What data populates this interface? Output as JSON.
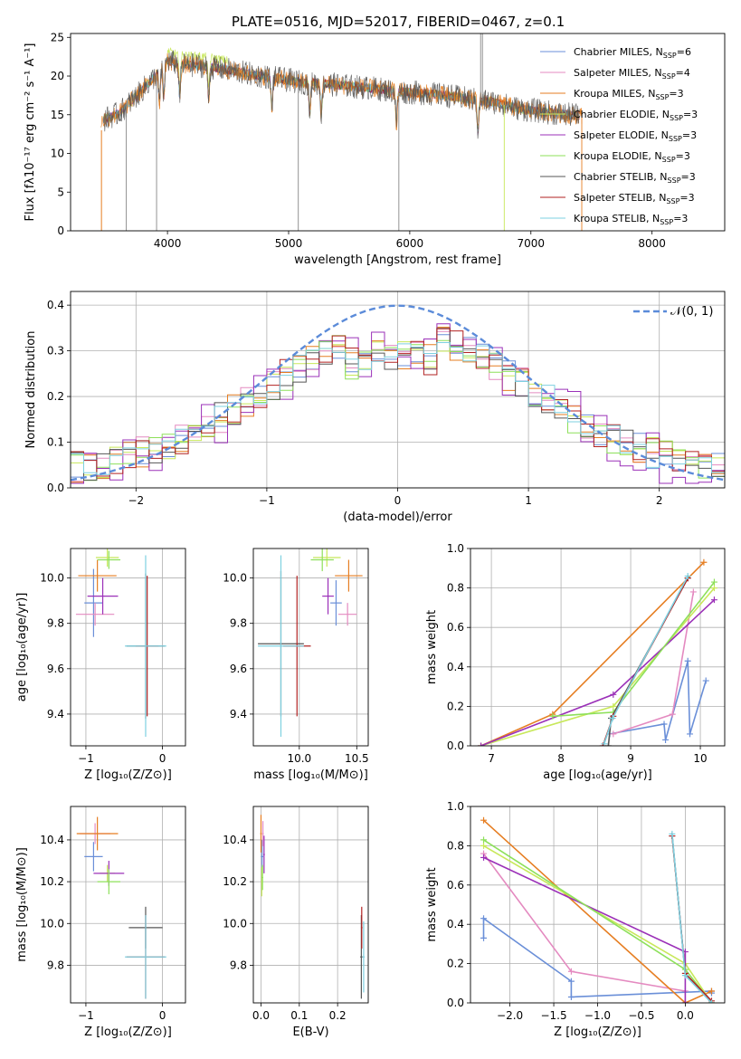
{
  "figure": {
    "title": "PLATE=0516, MJD=52017, FIBERID=0467, z=0.1"
  },
  "colors": {
    "series": [
      "#6a8fd8",
      "#e48ac0",
      "#e67e22",
      "#c8e85a",
      "#9b30b8",
      "#8de05a",
      "#555555",
      "#b22222",
      "#7ed0e0"
    ],
    "grid": "#b0b0b0",
    "normal": "#5b8bd9"
  },
  "legend": [
    {
      "label": "Chabrier MILES, N",
      "sub": "SSP",
      "suffix": "=6"
    },
    {
      "label": "Salpeter MILES, N",
      "sub": "SSP",
      "suffix": "=4"
    },
    {
      "label": "Kroupa MILES, N",
      "sub": "SSP",
      "suffix": "=3"
    },
    {
      "label": "Chabrier ELODIE, N",
      "sub": "SSP",
      "suffix": "=3"
    },
    {
      "label": "Salpeter ELODIE, N",
      "sub": "SSP",
      "suffix": "=3"
    },
    {
      "label": "Kroupa ELODIE, N",
      "sub": "SSP",
      "suffix": "=3"
    },
    {
      "label": "Chabrier STELIB, N",
      "sub": "SSP",
      "suffix": "=3"
    },
    {
      "label": "Salpeter STELIB, N",
      "sub": "SSP",
      "suffix": "=3"
    },
    {
      "label": "Kroupa STELIB, N",
      "sub": "SSP",
      "suffix": "=3"
    }
  ],
  "chart_data": [
    {
      "id": "spectrum",
      "type": "line",
      "xlabel": "wavelength [Angstrom, rest frame]",
      "ylabel": "Flux [fλ10⁻¹⁷ erg cm⁻² s⁻¹ A⁻¹]",
      "xlim": [
        3200,
        8600
      ],
      "ylim": [
        0,
        25.5
      ],
      "xticks": [
        4000,
        5000,
        6000,
        7000,
        8000
      ],
      "yticks": [
        0,
        5,
        10,
        15,
        20,
        25
      ],
      "continuum": {
        "x": [
          3450,
          3600,
          3750,
          3900,
          4000,
          4100,
          4300,
          4500,
          4700,
          4900,
          5100,
          5300,
          5500,
          5700,
          5900,
          6100,
          6300,
          6500,
          6700,
          6900,
          7100,
          7300,
          7420
        ],
        "y": [
          14.2,
          15.2,
          17.5,
          20.0,
          22.0,
          21.5,
          21.3,
          20.8,
          20.2,
          19.7,
          19.2,
          19.0,
          18.7,
          18.4,
          18.0,
          17.8,
          17.5,
          17.0,
          16.6,
          15.8,
          15.4,
          15.0,
          14.9
        ]
      },
      "absorption_lines": [
        3934,
        3969,
        4101,
        4340,
        4861,
        5175,
        5270,
        5890,
        6563
      ],
      "spikes": [
        {
          "x": 3660,
          "y": 0
        },
        {
          "x": 3910,
          "y": 0
        },
        {
          "x": 5080,
          "y": 0
        },
        {
          "x": 5910,
          "y": 0
        },
        {
          "x": 6780,
          "y": 0
        },
        {
          "x": 7420,
          "y": 0
        },
        {
          "x": 6585,
          "y": 25.5
        },
        {
          "x": 6600,
          "y": 25.5
        }
      ]
    },
    {
      "id": "residuals",
      "type": "bar",
      "xlabel": "(data-model)/error",
      "ylabel": "Normed distribution",
      "xlim": [
        -2.5,
        2.5
      ],
      "ylim": [
        0,
        0.43
      ],
      "xticks": [
        -2,
        -1,
        0,
        1,
        2
      ],
      "yticks": [
        0.0,
        0.1,
        0.2,
        0.3,
        0.4
      ],
      "bin_width": 0.1,
      "legend_label": "𝒩(0, 1)"
    },
    {
      "id": "age_vs_Z",
      "type": "scatter",
      "xlabel": "Z [log₁₀(Z/Z⊙)]",
      "ylabel": "age  [log₁₀(age/yr)]",
      "xlim": [
        -1.2,
        0.3
      ],
      "ylim": [
        9.26,
        10.13
      ],
      "xticks": [
        -1,
        0
      ],
      "yticks": [
        9.4,
        9.6,
        9.8,
        10.0
      ],
      "points": [
        {
          "x": -0.9,
          "y": 9.89,
          "xerr": 0.12,
          "yerr": 0.15
        },
        {
          "x": -0.88,
          "y": 9.84,
          "xerr": 0.25,
          "yerr": 0.05
        },
        {
          "x": -0.85,
          "y": 10.01,
          "xerr": 0.25,
          "yerr": 0.07
        },
        {
          "x": -0.72,
          "y": 10.09,
          "xerr": 0.15,
          "yerr": 0.04
        },
        {
          "x": -0.78,
          "y": 9.92,
          "xerr": 0.2,
          "yerr": 0.08
        },
        {
          "x": -0.7,
          "y": 10.08,
          "xerr": 0.15,
          "yerr": 0.04
        },
        {
          "x": -0.22,
          "y": 9.7,
          "xerr": 0.25,
          "yerr": 0.32
        },
        {
          "x": -0.2,
          "y": 9.7,
          "xerr": 0.15,
          "yerr": 0.31
        },
        {
          "x": -0.22,
          "y": 9.7,
          "xerr": 0.27,
          "yerr": 0.4
        }
      ]
    },
    {
      "id": "age_vs_mass",
      "type": "scatter",
      "xlabel": "mass [log₁₀(M/M⊙)]",
      "ylabel": "",
      "xlim": [
        9.6,
        10.6
      ],
      "ylim": [
        9.26,
        10.13
      ],
      "xticks": [
        10.0,
        10.5
      ],
      "yticks": [
        9.4,
        9.6,
        9.8,
        10.0
      ],
      "points": [
        {
          "x": 10.32,
          "y": 9.89,
          "xerr": 0.05,
          "yerr": 0.1
        },
        {
          "x": 10.42,
          "y": 9.84,
          "xerr": 0.08,
          "yerr": 0.05
        },
        {
          "x": 10.43,
          "y": 10.01,
          "xerr": 0.12,
          "yerr": 0.07
        },
        {
          "x": 10.24,
          "y": 10.09,
          "xerr": 0.12,
          "yerr": 0.04
        },
        {
          "x": 10.25,
          "y": 9.92,
          "xerr": 0.05,
          "yerr": 0.08
        },
        {
          "x": 10.2,
          "y": 10.08,
          "xerr": 0.1,
          "yerr": 0.05
        },
        {
          "x": 9.84,
          "y": 9.71,
          "xerr": 0.2,
          "yerr": 0.32
        },
        {
          "x": 9.98,
          "y": 9.7,
          "xerr": 0.12,
          "yerr": 0.31
        },
        {
          "x": 9.84,
          "y": 9.7,
          "xerr": 0.2,
          "yerr": 0.4
        }
      ]
    },
    {
      "id": "mass_weight_vs_age",
      "type": "line",
      "xlabel": "age  [log₁₀(age/yr)]",
      "ylabel": "mass weight",
      "xlim": [
        6.7,
        10.35
      ],
      "ylim": [
        0.0,
        1.0
      ],
      "xticks": [
        7,
        8,
        9,
        10
      ],
      "yticks": [
        0.0,
        0.2,
        0.4,
        0.6,
        0.8,
        1.0
      ],
      "series": [
        {
          "x": [
            8.7,
            9.48,
            9.5,
            9.82,
            9.85,
            10.08
          ],
          "y": [
            0.06,
            0.11,
            0.03,
            0.43,
            0.06,
            0.33
          ]
        },
        {
          "x": [
            8.75,
            9.6,
            9.9
          ],
          "y": [
            0.06,
            0.16,
            0.78
          ]
        },
        {
          "x": [
            6.85,
            7.88,
            10.05
          ],
          "y": [
            0.0,
            0.16,
            0.93
          ]
        },
        {
          "x": [
            6.85,
            8.75,
            10.2
          ],
          "y": [
            0.0,
            0.2,
            0.8
          ]
        },
        {
          "x": [
            6.85,
            8.75,
            10.2
          ],
          "y": [
            0.0,
            0.26,
            0.74
          ]
        },
        {
          "x": [
            7.88,
            8.75,
            10.2
          ],
          "y": [
            0.15,
            0.17,
            0.83
          ]
        },
        {
          "x": [
            8.68,
            8.72,
            9.82
          ],
          "y": [
            0.0,
            0.14,
            0.85
          ]
        },
        {
          "x": [
            8.6,
            8.75,
            9.82
          ],
          "y": [
            0.0,
            0.15,
            0.85
          ]
        },
        {
          "x": [
            8.62,
            8.74,
            9.82
          ],
          "y": [
            0.01,
            0.14,
            0.86
          ]
        }
      ]
    },
    {
      "id": "mass_vs_Z",
      "type": "scatter",
      "xlabel": "Z [log₁₀(Z/Z⊙)]",
      "ylabel": "mass [log₁₀(M/M⊙)]",
      "xlim": [
        -1.2,
        0.3
      ],
      "ylim": [
        9.62,
        10.56
      ],
      "xticks": [
        -1,
        0
      ],
      "yticks": [
        9.8,
        10.0,
        10.2,
        10.4
      ],
      "points": [
        {
          "x": -0.9,
          "y": 10.32,
          "xerr": 0.12,
          "yerr": 0.07
        },
        {
          "x": -0.88,
          "y": 10.43,
          "xerr": 0.2,
          "yerr": 0.05
        },
        {
          "x": -0.85,
          "y": 10.43,
          "xerr": 0.27,
          "yerr": 0.08
        },
        {
          "x": -0.72,
          "y": 10.24,
          "xerr": 0.1,
          "yerr": 0.04
        },
        {
          "x": -0.7,
          "y": 10.24,
          "xerr": 0.2,
          "yerr": 0.06
        },
        {
          "x": -0.7,
          "y": 10.2,
          "xerr": 0.15,
          "yerr": 0.06
        },
        {
          "x": -0.22,
          "y": 9.98,
          "xerr": 0.22,
          "yerr": 0.1
        },
        {
          "x": -0.22,
          "y": 9.84,
          "xerr": 0.25,
          "yerr": 0.2
        },
        {
          "x": -0.22,
          "y": 9.84,
          "xerr": 0.27,
          "yerr": 0.2
        }
      ]
    },
    {
      "id": "mass_vs_ebv",
      "type": "scatter",
      "xlabel": "E(B-V)",
      "ylabel": "",
      "xlim": [
        -0.02,
        0.28
      ],
      "ylim": [
        9.62,
        10.56
      ],
      "xticks": [
        0.0,
        0.1,
        0.2
      ],
      "yticks": [
        9.8,
        10.0,
        10.2,
        10.4
      ],
      "points": [
        {
          "x": 0.003,
          "y": 10.32,
          "xerr": 0.003,
          "yerr": 0.08
        },
        {
          "x": 0.005,
          "y": 10.43,
          "xerr": 0.002,
          "yerr": 0.06
        },
        {
          "x": 0.0,
          "y": 10.43,
          "xerr": 0.002,
          "yerr": 0.09
        },
        {
          "x": 0.002,
          "y": 10.2,
          "xerr": 0.002,
          "yerr": 0.07
        },
        {
          "x": 0.008,
          "y": 10.33,
          "xerr": 0.002,
          "yerr": 0.09
        },
        {
          "x": 0.004,
          "y": 10.22,
          "xerr": 0.002,
          "yerr": 0.06
        },
        {
          "x": 0.262,
          "y": 9.84,
          "xerr": 0.003,
          "yerr": 0.2
        },
        {
          "x": 0.263,
          "y": 9.98,
          "xerr": 0.002,
          "yerr": 0.1
        },
        {
          "x": 0.268,
          "y": 9.84,
          "xerr": 0.003,
          "yerr": 0.17
        }
      ]
    },
    {
      "id": "mass_weight_vs_Z",
      "type": "line",
      "xlabel": "Z [log₁₀(Z/Z⊙)]",
      "ylabel": "mass weight",
      "xlim": [
        -2.45,
        0.45
      ],
      "ylim": [
        0.0,
        1.0
      ],
      "xticks": [
        -2.0,
        -1.5,
        -1.0,
        -0.5,
        0.0
      ],
      "yticks": [
        0.0,
        0.2,
        0.4,
        0.6,
        0.8,
        1.0
      ],
      "series": [
        {
          "x": [
            -2.3,
            -2.3,
            -1.3,
            -1.3,
            0.3,
            0.3
          ],
          "y": [
            0.33,
            0.43,
            0.11,
            0.03,
            0.06,
            0.05
          ]
        },
        {
          "x": [
            -2.3,
            -1.3,
            0.0
          ],
          "y": [
            0.76,
            0.16,
            0.06
          ]
        },
        {
          "x": [
            -2.3,
            0.0,
            0.3
          ],
          "y": [
            0.93,
            0.0,
            0.06
          ]
        },
        {
          "x": [
            -2.3,
            0.0,
            0.3
          ],
          "y": [
            0.8,
            0.2,
            0.0
          ]
        },
        {
          "x": [
            -2.3,
            0.0,
            0.0
          ],
          "y": [
            0.74,
            0.26,
            0.0
          ]
        },
        {
          "x": [
            -2.3,
            0.0,
            0.3
          ],
          "y": [
            0.83,
            0.17,
            0.0
          ]
        },
        {
          "x": [
            -0.15,
            0.0,
            0.3
          ],
          "y": [
            0.85,
            0.15,
            0.0
          ]
        },
        {
          "x": [
            -0.15,
            0.0,
            0.3
          ],
          "y": [
            0.85,
            0.15,
            0.01
          ]
        },
        {
          "x": [
            -0.15,
            0.0,
            0.3
          ],
          "y": [
            0.86,
            0.14,
            0.0
          ]
        }
      ]
    }
  ]
}
